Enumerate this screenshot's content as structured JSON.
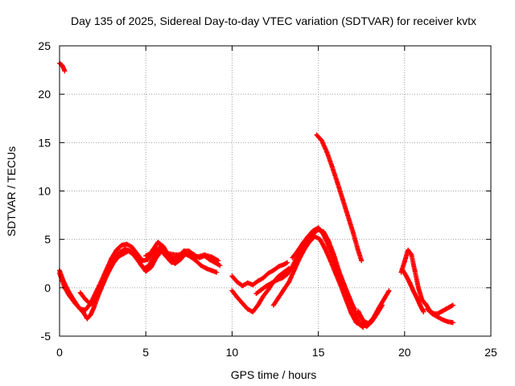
{
  "chart_data": {
    "type": "scatter",
    "title": "Day 135 of 2025, Sidereal Day-to-day VTEC variation (SDTVAR) for receiver kvtx",
    "xlabel": "GPS time / hours",
    "ylabel": "SDTVAR / TECUs",
    "xlim": [
      0,
      25
    ],
    "ylim": [
      -5,
      25
    ],
    "xticks": [
      "0",
      "5",
      "10",
      "15",
      "20",
      "25"
    ],
    "yticks": [
      "-5",
      "0",
      "5",
      "10",
      "15",
      "20",
      "25"
    ],
    "grid": true,
    "legend": "none",
    "marker": "+",
    "color": "#ff0000",
    "series": [
      {
        "name": "s1",
        "points": [
          [
            0.0,
            23.2
          ],
          [
            0.15,
            23.0
          ],
          [
            0.3,
            22.4
          ]
        ]
      },
      {
        "name": "s2",
        "points": [
          [
            0.0,
            1.8
          ],
          [
            0.2,
            0.8
          ],
          [
            0.5,
            -0.3
          ],
          [
            0.8,
            -1.2
          ],
          [
            1.1,
            -2.0
          ],
          [
            1.4,
            -2.6
          ],
          [
            1.6,
            -3.2
          ],
          [
            1.8,
            -2.8
          ],
          [
            2.0,
            -2.0
          ],
          [
            2.2,
            -1.0
          ],
          [
            2.5,
            0.3
          ],
          [
            2.8,
            1.5
          ],
          [
            3.1,
            2.5
          ],
          [
            3.4,
            3.2
          ],
          [
            3.7,
            3.5
          ],
          [
            4.0,
            3.8
          ],
          [
            4.3,
            3.4
          ],
          [
            4.6,
            2.7
          ],
          [
            4.9,
            2.0
          ],
          [
            5.2,
            2.3
          ],
          [
            5.5,
            3.5
          ],
          [
            5.8,
            4.2
          ],
          [
            6.1,
            3.6
          ],
          [
            6.4,
            2.8
          ],
          [
            6.7,
            2.5
          ],
          [
            7.0,
            2.9
          ],
          [
            7.3,
            3.5
          ],
          [
            7.6,
            3.2
          ],
          [
            7.9,
            2.8
          ],
          [
            8.2,
            2.3
          ],
          [
            8.5,
            2.0
          ],
          [
            8.8,
            1.8
          ],
          [
            9.1,
            1.6
          ]
        ]
      },
      {
        "name": "s3",
        "points": [
          [
            0.0,
            1.5
          ],
          [
            0.3,
            0.0
          ],
          [
            0.6,
            -0.9
          ],
          [
            0.9,
            -1.6
          ],
          [
            1.2,
            -2.2
          ],
          [
            1.5,
            -2.3
          ],
          [
            1.8,
            -1.6
          ],
          [
            2.1,
            -0.5
          ],
          [
            2.4,
            0.6
          ],
          [
            2.7,
            1.8
          ],
          [
            3.0,
            3.0
          ],
          [
            3.3,
            3.9
          ],
          [
            3.6,
            4.4
          ],
          [
            3.9,
            4.5
          ],
          [
            4.2,
            4.2
          ],
          [
            4.5,
            3.5
          ],
          [
            4.8,
            2.8
          ],
          [
            5.1,
            2.9
          ],
          [
            5.4,
            3.9
          ],
          [
            5.7,
            4.7
          ],
          [
            6.0,
            4.3
          ],
          [
            6.3,
            3.4
          ],
          [
            6.6,
            3.0
          ],
          [
            6.9,
            3.2
          ],
          [
            7.2,
            3.8
          ],
          [
            7.5,
            3.8
          ],
          [
            7.8,
            3.4
          ],
          [
            8.1,
            3.1
          ],
          [
            8.4,
            3.3
          ],
          [
            8.7,
            2.9
          ],
          [
            9.0,
            2.6
          ],
          [
            9.3,
            2.3
          ]
        ]
      },
      {
        "name": "s4",
        "points": [
          [
            1.2,
            -0.5
          ],
          [
            1.5,
            -1.2
          ],
          [
            1.8,
            -1.7
          ],
          [
            2.0,
            -1.5
          ],
          [
            2.3,
            -0.4
          ],
          [
            2.6,
            0.9
          ],
          [
            2.9,
            2.0
          ],
          [
            3.2,
            2.9
          ],
          [
            3.5,
            3.7
          ],
          [
            3.8,
            4.0
          ],
          [
            4.1,
            3.8
          ],
          [
            4.4,
            3.2
          ],
          [
            4.7,
            2.4
          ],
          [
            5.0,
            1.7
          ],
          [
            5.3,
            2.1
          ],
          [
            5.6,
            3.1
          ],
          [
            5.9,
            3.8
          ],
          [
            6.2,
            3.2
          ],
          [
            6.5,
            2.6
          ],
          [
            6.8,
            2.7
          ],
          [
            7.1,
            3.4
          ]
        ]
      },
      {
        "name": "s5",
        "points": [
          [
            5.0,
            3.3
          ],
          [
            5.3,
            3.6
          ],
          [
            5.6,
            3.9
          ],
          [
            6.0,
            3.7
          ],
          [
            6.4,
            3.5
          ],
          [
            6.8,
            3.4
          ],
          [
            7.2,
            3.5
          ],
          [
            7.6,
            3.3
          ],
          [
            8.0,
            3.2
          ],
          [
            8.4,
            3.4
          ],
          [
            8.8,
            3.2
          ],
          [
            9.2,
            2.8
          ]
        ]
      },
      {
        "name": "s6",
        "points": [
          [
            10.0,
            1.2
          ],
          [
            10.3,
            0.6
          ],
          [
            10.6,
            0.2
          ],
          [
            10.9,
            0.5
          ],
          [
            11.2,
            0.3
          ],
          [
            11.5,
            0.7
          ],
          [
            11.8,
            1.0
          ],
          [
            12.1,
            1.5
          ],
          [
            12.4,
            1.8
          ],
          [
            12.7,
            2.2
          ],
          [
            13.0,
            2.4
          ],
          [
            13.2,
            2.6
          ]
        ]
      },
      {
        "name": "s7",
        "points": [
          [
            10.0,
            -0.3
          ],
          [
            10.3,
            -1.0
          ],
          [
            10.6,
            -1.6
          ],
          [
            10.9,
            -2.2
          ],
          [
            11.2,
            -2.5
          ],
          [
            11.5,
            -1.8
          ],
          [
            11.8,
            -0.9
          ],
          [
            12.1,
            -0.2
          ],
          [
            12.4,
            0.6
          ],
          [
            12.7,
            1.2
          ],
          [
            13.0,
            1.6
          ],
          [
            13.3,
            2.0
          ]
        ]
      },
      {
        "name": "s8",
        "points": [
          [
            11.4,
            -0.6
          ],
          [
            11.7,
            -0.2
          ],
          [
            12.0,
            0.2
          ],
          [
            12.3,
            0.5
          ],
          [
            12.6,
            0.8
          ],
          [
            12.9,
            1.0
          ],
          [
            13.2,
            1.4
          ],
          [
            13.5,
            2.2
          ],
          [
            13.8,
            3.3
          ],
          [
            14.1,
            4.3
          ],
          [
            14.4,
            5.0
          ],
          [
            14.7,
            5.6
          ],
          [
            15.0,
            6.0
          ],
          [
            15.3,
            5.8
          ],
          [
            15.6,
            4.8
          ],
          [
            15.9,
            3.4
          ],
          [
            16.2,
            1.7
          ],
          [
            16.5,
            0.3
          ],
          [
            16.8,
            -1.0
          ],
          [
            17.1,
            -2.4
          ],
          [
            17.4,
            -3.8
          ],
          [
            17.6,
            -4.1
          ]
        ]
      },
      {
        "name": "s9",
        "points": [
          [
            12.4,
            -1.8
          ],
          [
            12.7,
            -1.0
          ],
          [
            13.0,
            -0.2
          ],
          [
            13.3,
            0.6
          ],
          [
            13.6,
            1.8
          ],
          [
            13.9,
            3.0
          ],
          [
            14.2,
            4.0
          ],
          [
            14.5,
            4.8
          ],
          [
            14.8,
            5.3
          ],
          [
            15.1,
            5.0
          ],
          [
            15.4,
            4.0
          ],
          [
            15.7,
            2.8
          ],
          [
            16.0,
            1.5
          ],
          [
            16.3,
            0.2
          ],
          [
            16.6,
            -1.2
          ],
          [
            16.9,
            -2.6
          ],
          [
            17.2,
            -3.6
          ],
          [
            17.5,
            -3.9
          ]
        ]
      },
      {
        "name": "s10",
        "points": [
          [
            13.5,
            3.1
          ],
          [
            13.8,
            3.8
          ],
          [
            14.1,
            4.6
          ],
          [
            14.4,
            5.3
          ],
          [
            14.7,
            5.9
          ],
          [
            15.0,
            6.2
          ],
          [
            15.3,
            5.5
          ],
          [
            15.6,
            4.3
          ],
          [
            15.9,
            3.0
          ],
          [
            16.2,
            1.4
          ],
          [
            16.5,
            0.0
          ],
          [
            16.8,
            -1.2
          ],
          [
            17.1,
            -2.2
          ]
        ]
      },
      {
        "name": "s11",
        "points": [
          [
            14.9,
            15.8
          ],
          [
            15.2,
            15.2
          ],
          [
            15.5,
            14.0
          ],
          [
            15.8,
            12.5
          ],
          [
            16.1,
            10.9
          ],
          [
            16.4,
            9.2
          ],
          [
            16.7,
            7.5
          ],
          [
            17.0,
            5.8
          ],
          [
            17.3,
            3.9
          ],
          [
            17.5,
            2.8
          ]
        ]
      },
      {
        "name": "s12",
        "points": [
          [
            17.3,
            -2.4
          ],
          [
            17.6,
            -3.4
          ],
          [
            17.9,
            -3.7
          ],
          [
            18.2,
            -3.1
          ],
          [
            18.5,
            -2.1
          ],
          [
            18.8,
            -1.2
          ],
          [
            19.1,
            -0.3
          ]
        ]
      },
      {
        "name": "s13",
        "points": [
          [
            17.5,
            -3.7
          ],
          [
            17.8,
            -4.0
          ],
          [
            18.1,
            -3.5
          ],
          [
            18.4,
            -2.7
          ],
          [
            18.7,
            -1.8
          ]
        ]
      },
      {
        "name": "s14",
        "points": [
          [
            19.9,
            1.8
          ],
          [
            20.1,
            1.2
          ],
          [
            20.3,
            0.5
          ],
          [
            20.5,
            -0.3
          ],
          [
            20.7,
            -1.0
          ],
          [
            20.9,
            -1.8
          ],
          [
            21.1,
            -2.5
          ]
        ]
      },
      {
        "name": "s15",
        "points": [
          [
            19.8,
            1.6
          ],
          [
            20.0,
            2.7
          ],
          [
            20.2,
            3.9
          ],
          [
            20.4,
            3.4
          ],
          [
            20.6,
            1.7
          ],
          [
            20.8,
            0.0
          ],
          [
            21.0,
            -1.2
          ],
          [
            21.2,
            -1.7
          ]
        ]
      },
      {
        "name": "s16",
        "points": [
          [
            21.2,
            -1.6
          ],
          [
            21.4,
            -2.2
          ],
          [
            21.6,
            -2.6
          ],
          [
            21.8,
            -2.7
          ],
          [
            22.0,
            -2.6
          ],
          [
            22.2,
            -2.4
          ],
          [
            22.4,
            -2.2
          ],
          [
            22.6,
            -2.0
          ],
          [
            22.8,
            -1.8
          ]
        ]
      },
      {
        "name": "s17",
        "points": [
          [
            21.3,
            -2.2
          ],
          [
            21.6,
            -2.7
          ],
          [
            21.9,
            -3.0
          ],
          [
            22.2,
            -3.3
          ],
          [
            22.5,
            -3.5
          ],
          [
            22.8,
            -3.6
          ]
        ]
      }
    ]
  }
}
